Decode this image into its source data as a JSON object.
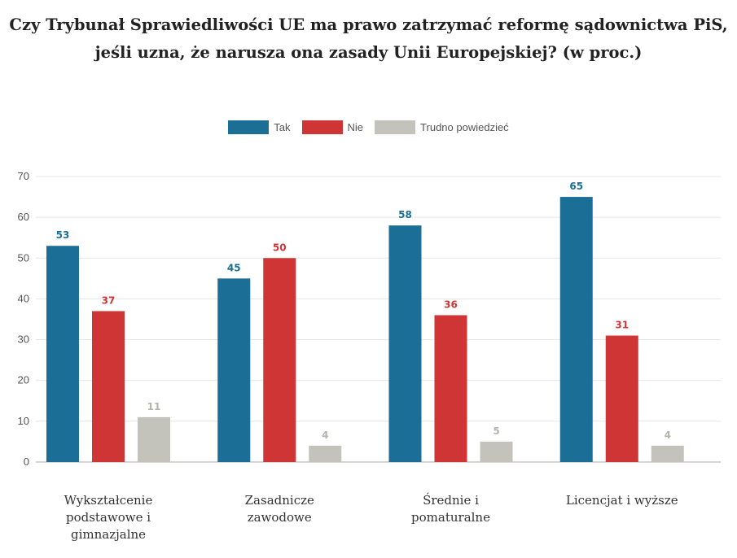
{
  "title_line1": "Czy Trybunał Sprawiedliwości UE ma prawo zatrzymać reformę sądownictwa PiS,",
  "title_line2": "jeśli uzna, że narusza ona zasady Unii Europejskiej? (w proc.)",
  "colors": {
    "tak": "#1b6f96",
    "nie": "#cf3535",
    "trudno": "#c4c3bb"
  },
  "chart_data": {
    "type": "bar",
    "title": "Czy Trybunał Sprawiedliwości UE ma prawo zatrzymać reformę sądownictwa PiS, jeśli uzna, że narusza ona zasady Unii Europejskiej? (w proc.)",
    "categories": [
      [
        "Wykształcenie",
        "podstawowe i",
        "gimnazjalne"
      ],
      [
        "Zasadnicze",
        "zawodowe"
      ],
      [
        "Średnie i",
        "pomaturalne"
      ],
      [
        "Licencjat i wyższe"
      ]
    ],
    "series": [
      {
        "name": "Tak",
        "values": [
          53,
          45,
          58,
          65
        ]
      },
      {
        "name": "Nie",
        "values": [
          37,
          50,
          36,
          31
        ]
      },
      {
        "name": "Trudno powiedzieć",
        "values": [
          11,
          4,
          5,
          4
        ]
      }
    ],
    "ylim": [
      0,
      70
    ],
    "yticks": [
      0,
      10,
      20,
      30,
      40,
      50,
      60,
      70
    ],
    "grid": true,
    "legend": "top-center",
    "data_labels": true
  }
}
